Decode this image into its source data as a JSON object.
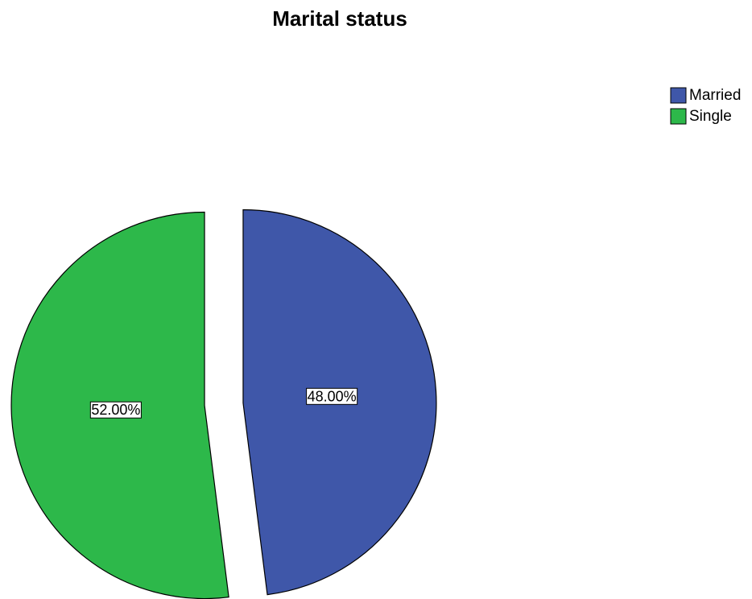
{
  "chart_data": {
    "type": "pie",
    "title": "Marital status",
    "categories": [
      "Married",
      "Single"
    ],
    "values": [
      48,
      52
    ],
    "value_labels": [
      "48.00%",
      "52.00%"
    ],
    "colors": [
      "#3f57a9",
      "#2db84a"
    ]
  }
}
